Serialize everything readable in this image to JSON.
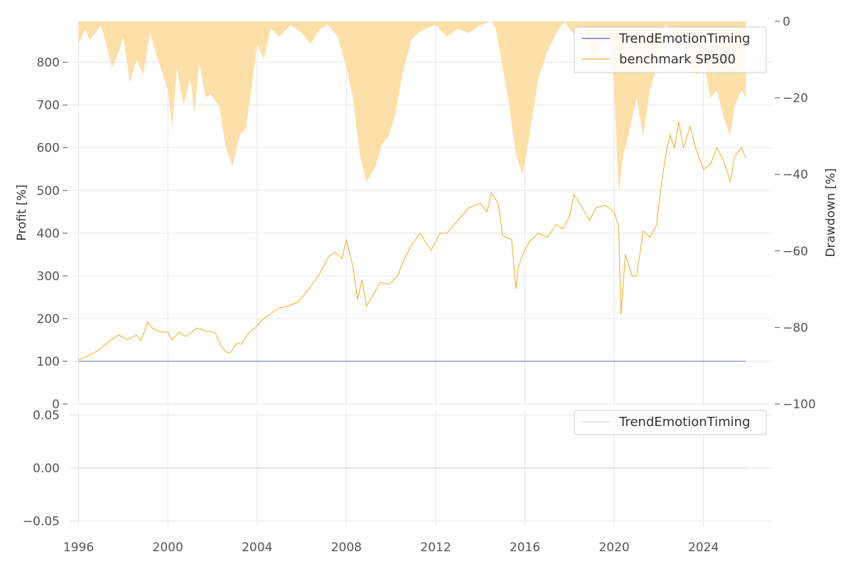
{
  "colors": {
    "strategy": "#3333cc",
    "benchmark": "#f5a000",
    "drawdown_fill": "#fddfa8",
    "bottom_line": "#c8c8f0",
    "grid": "#e6e6e6",
    "tick_text": "#555555"
  },
  "chart_data": [
    {
      "type": "line",
      "title": "",
      "xlabel": "",
      "ylabel": "Profit [%]",
      "y2label": "Drawdown [%]",
      "xlim": [
        1995.6,
        2027.1
      ],
      "ylim": [
        0,
        896
      ],
      "y2lim": [
        -100,
        0
      ],
      "x_ticks": [
        1996,
        2000,
        2004,
        2008,
        2012,
        2016,
        2020,
        2024
      ],
      "x_tick_labels": [
        "1996",
        "2000",
        "2004",
        "2008",
        "2012",
        "2016",
        "2020",
        "2024"
      ],
      "y_ticks": [
        0,
        100,
        200,
        300,
        400,
        500,
        600,
        700,
        800
      ],
      "y_tick_labels": [
        "0",
        "100",
        "200",
        "300",
        "400",
        "500",
        "600",
        "700",
        "800"
      ],
      "y2_ticks": [
        0,
        -20,
        -40,
        -60,
        -80,
        -100
      ],
      "y2_tick_labels": [
        "0",
        "−20",
        "−40",
        "−60",
        "−80",
        "−100"
      ],
      "grid": true,
      "legend_position": "top-right",
      "series": [
        {
          "name": "TrendEmotionTiming",
          "axis": "left",
          "x": [
            1996.0,
            2025.9
          ],
          "values": [
            100,
            100
          ]
        },
        {
          "name": "benchmark SP500",
          "axis": "left",
          "x": [
            1996.0,
            1996.3,
            1996.7,
            1997.0,
            1997.4,
            1997.8,
            1998.2,
            1998.6,
            1998.8,
            1999.1,
            1999.3,
            1999.6,
            2000.0,
            2000.2,
            2000.5,
            2000.8,
            2001.0,
            2001.3,
            2001.6,
            2001.8,
            2002.1,
            2002.4,
            2002.6,
            2002.8,
            2003.1,
            2003.3,
            2003.6,
            2003.9,
            2004.3,
            2004.7,
            2005.0,
            2005.4,
            2005.8,
            2006.1,
            2006.4,
            2006.8,
            2007.2,
            2007.5,
            2007.8,
            2008.0,
            2008.3,
            2008.5,
            2008.7,
            2008.9,
            2009.2,
            2009.5,
            2009.9,
            2010.3,
            2010.5,
            2010.9,
            2011.3,
            2011.6,
            2011.8,
            2012.2,
            2012.5,
            2013.0,
            2013.5,
            2014.0,
            2014.3,
            2014.5,
            2014.8,
            2015.0,
            2015.4,
            2015.6,
            2015.7,
            2015.9,
            2016.2,
            2016.6,
            2017.0,
            2017.4,
            2017.7,
            2018.0,
            2018.2,
            2018.5,
            2018.9,
            2019.2,
            2019.6,
            2020.0,
            2020.2,
            2020.3,
            2020.5,
            2020.8,
            2021.0,
            2021.3,
            2021.6,
            2021.9,
            2022.1,
            2022.3,
            2022.5,
            2022.7,
            2022.9,
            2023.1,
            2023.4,
            2023.7,
            2024.0,
            2024.3,
            2024.6,
            2024.9,
            2025.2,
            2025.4,
            2025.7,
            2025.9
          ],
          "values": [
            103,
            110,
            120,
            130,
            148,
            162,
            150,
            162,
            148,
            192,
            178,
            170,
            168,
            150,
            168,
            158,
            165,
            178,
            172,
            170,
            168,
            135,
            122,
            120,
            142,
            140,
            165,
            178,
            200,
            215,
            225,
            230,
            238,
            255,
            275,
            305,
            345,
            355,
            340,
            385,
            320,
            245,
            290,
            230,
            255,
            285,
            280,
            300,
            330,
            370,
            400,
            375,
            360,
            400,
            400,
            430,
            460,
            470,
            450,
            495,
            470,
            395,
            385,
            270,
            320,
            350,
            380,
            400,
            390,
            420,
            410,
            440,
            490,
            465,
            430,
            460,
            465,
            450,
            415,
            210,
            350,
            300,
            300,
            405,
            390,
            420,
            510,
            580,
            630,
            600,
            660,
            600,
            650,
            590,
            550,
            560,
            600,
            570,
            520,
            580,
            600,
            575
          ]
        },
        {
          "name": "Drawdown",
          "axis": "right",
          "x": [
            1996.0,
            1996.3,
            1996.5,
            1997.0,
            1997.5,
            1997.8,
            1998.0,
            1998.3,
            1998.6,
            1998.9,
            1999.2,
            1999.5,
            2000.0,
            2000.2,
            2000.4,
            2000.7,
            2001.0,
            2001.2,
            2001.4,
            2001.7,
            2001.9,
            2002.3,
            2002.6,
            2002.9,
            2003.2,
            2003.5,
            2003.8,
            2004.0,
            2004.3,
            2004.6,
            2005.0,
            2005.5,
            2006.0,
            2006.4,
            2006.8,
            2007.2,
            2007.6,
            2008.0,
            2008.3,
            2008.6,
            2008.9,
            2009.1,
            2009.3,
            2009.6,
            2009.9,
            2010.2,
            2010.5,
            2010.9,
            2011.2,
            2011.5,
            2012.0,
            2012.5,
            2013.0,
            2013.5,
            2014.0,
            2014.5,
            2014.7,
            2015.0,
            2015.3,
            2015.6,
            2015.9,
            2016.2,
            2016.6,
            2017.0,
            2017.4,
            2017.8,
            2018.0,
            2018.3,
            2018.6,
            2019.0,
            2019.4,
            2019.8,
            2020.0,
            2020.2,
            2020.4,
            2020.7,
            2021.0,
            2021.3,
            2021.6,
            2021.9,
            2022.1,
            2022.3,
            2022.6,
            2022.9,
            2023.1,
            2023.4,
            2023.7,
            2024.0,
            2024.3,
            2024.6,
            2024.9,
            2025.2,
            2025.4,
            2025.7,
            2025.9
          ],
          "values": [
            -6,
            -2,
            -5,
            -1,
            -12,
            -8,
            -4,
            -16,
            -10,
            -14,
            -3,
            -9,
            -18,
            -28,
            -12,
            -22,
            -15,
            -24,
            -11,
            -20,
            -19,
            -22,
            -33,
            -38,
            -30,
            -28,
            -15,
            -6,
            -10,
            -2,
            -4,
            -1,
            -3,
            -6,
            -2,
            -1,
            -4,
            -12,
            -20,
            -35,
            -42,
            -40,
            -38,
            -32,
            -30,
            -24,
            -14,
            -5,
            -3,
            -2,
            -1,
            -4,
            -2,
            -3,
            -1,
            0,
            -2,
            -12,
            -22,
            -35,
            -40,
            -30,
            -15,
            -8,
            -3,
            0,
            -2,
            -4,
            -1,
            -10,
            -6,
            -4,
            -18,
            -45,
            -35,
            -28,
            -20,
            -30,
            -18,
            -12,
            -5,
            -1,
            -2,
            -8,
            -4,
            -12,
            -14,
            -10,
            -20,
            -18,
            -25,
            -30,
            -22,
            -18,
            -20
          ]
        }
      ]
    },
    {
      "type": "line",
      "title": "",
      "xlabel": "",
      "ylabel": "",
      "xlim": [
        1995.6,
        2027.1
      ],
      "ylim": [
        -0.055,
        0.055
      ],
      "x_ticks": [
        1996,
        2000,
        2004,
        2008,
        2012,
        2016,
        2020,
        2024
      ],
      "x_tick_labels": [
        "1996",
        "2000",
        "2004",
        "2008",
        "2012",
        "2016",
        "2020",
        "2024"
      ],
      "y_ticks": [
        0.05,
        0.0,
        -0.05
      ],
      "y_tick_labels": [
        "0.05",
        "0.00",
        "−0.05"
      ],
      "grid": true,
      "legend_position": "top-right",
      "series": [
        {
          "name": "TrendEmotionTiming",
          "x": [
            1996.0,
            2025.9
          ],
          "values": [
            0,
            0
          ]
        }
      ]
    }
  ]
}
